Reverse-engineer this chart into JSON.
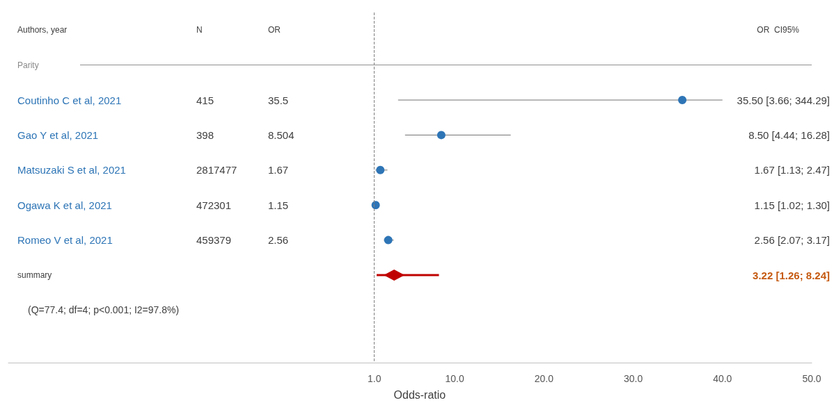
{
  "chart_data": {
    "type": "scatter",
    "orientation": "horizontal",
    "grid": false,
    "categories": [
      "Authors, year",
      "Parity",
      "Coutinho C et al, 2021",
      "Gao Y et al, 2021",
      "Matsuzaki S et al, 2021",
      "Ogawa K et al, 2021",
      "Romeo V et al, 2021",
      "summary",
      null,
      null
    ],
    "xlabel": "Odds-ratio",
    "xlim": [
      -40,
      50
    ],
    "xticks": [
      {
        "value": 1,
        "label": "1.0"
      },
      {
        "value": 10,
        "label": "10.0"
      },
      {
        "value": 20,
        "label": "20.0"
      },
      {
        "value": 30,
        "label": "30.0"
      },
      {
        "value": 40,
        "label": "40.0"
      },
      {
        "value": 50,
        "label": "50.0"
      }
    ],
    "series": [
      {
        "type": "scatter",
        "marker": "circle",
        "color": "#2e75b6",
        "values": [
          null,
          null,
          35.5,
          8.5,
          1.67,
          1.15,
          2.56,
          null,
          null,
          null
        ],
        "errors": [
          null,
          null,
          [
            3.66,
            40
          ],
          [
            4.44,
            16.28
          ],
          [
            1.13,
            2.47
          ],
          [
            1.02,
            1.3
          ],
          [
            2.07,
            3.17
          ],
          null,
          null,
          null
        ]
      },
      {
        "type": "scatter",
        "marker": "diamond",
        "color": "#c00000",
        "values": [
          null,
          null,
          null,
          null,
          null,
          null,
          null,
          3.22,
          null,
          null
        ],
        "errors": [
          null,
          null,
          null,
          null,
          null,
          null,
          null,
          [
            1.26,
            8.24
          ],
          null,
          null
        ]
      }
    ],
    "ref_lines": [
      {
        "axis": "x",
        "value": 1,
        "line_style": "dashed",
        "color": "#808080"
      },
      {
        "axis": "y",
        "value": "Parity",
        "color": "#909090"
      }
    ],
    "annotations": [
      "N",
      "OR",
      "OR  CI95%",
      "415",
      "35.5",
      "35.50 [3.66; 344.29]",
      "398",
      "8.504",
      "8.50 [4.44; 16.28]",
      "2817477",
      "1.67",
      "1.67 [1.13; 2.47]",
      "472301",
      "1.15",
      "1.15 [1.02; 1.30]",
      "459379",
      "2.56",
      "2.56 [2.07; 3.17]",
      "3.22 [1.26; 8.24]",
      "(Q=77.4; df=4; p<0.001; I2=97.8%)"
    ]
  }
}
